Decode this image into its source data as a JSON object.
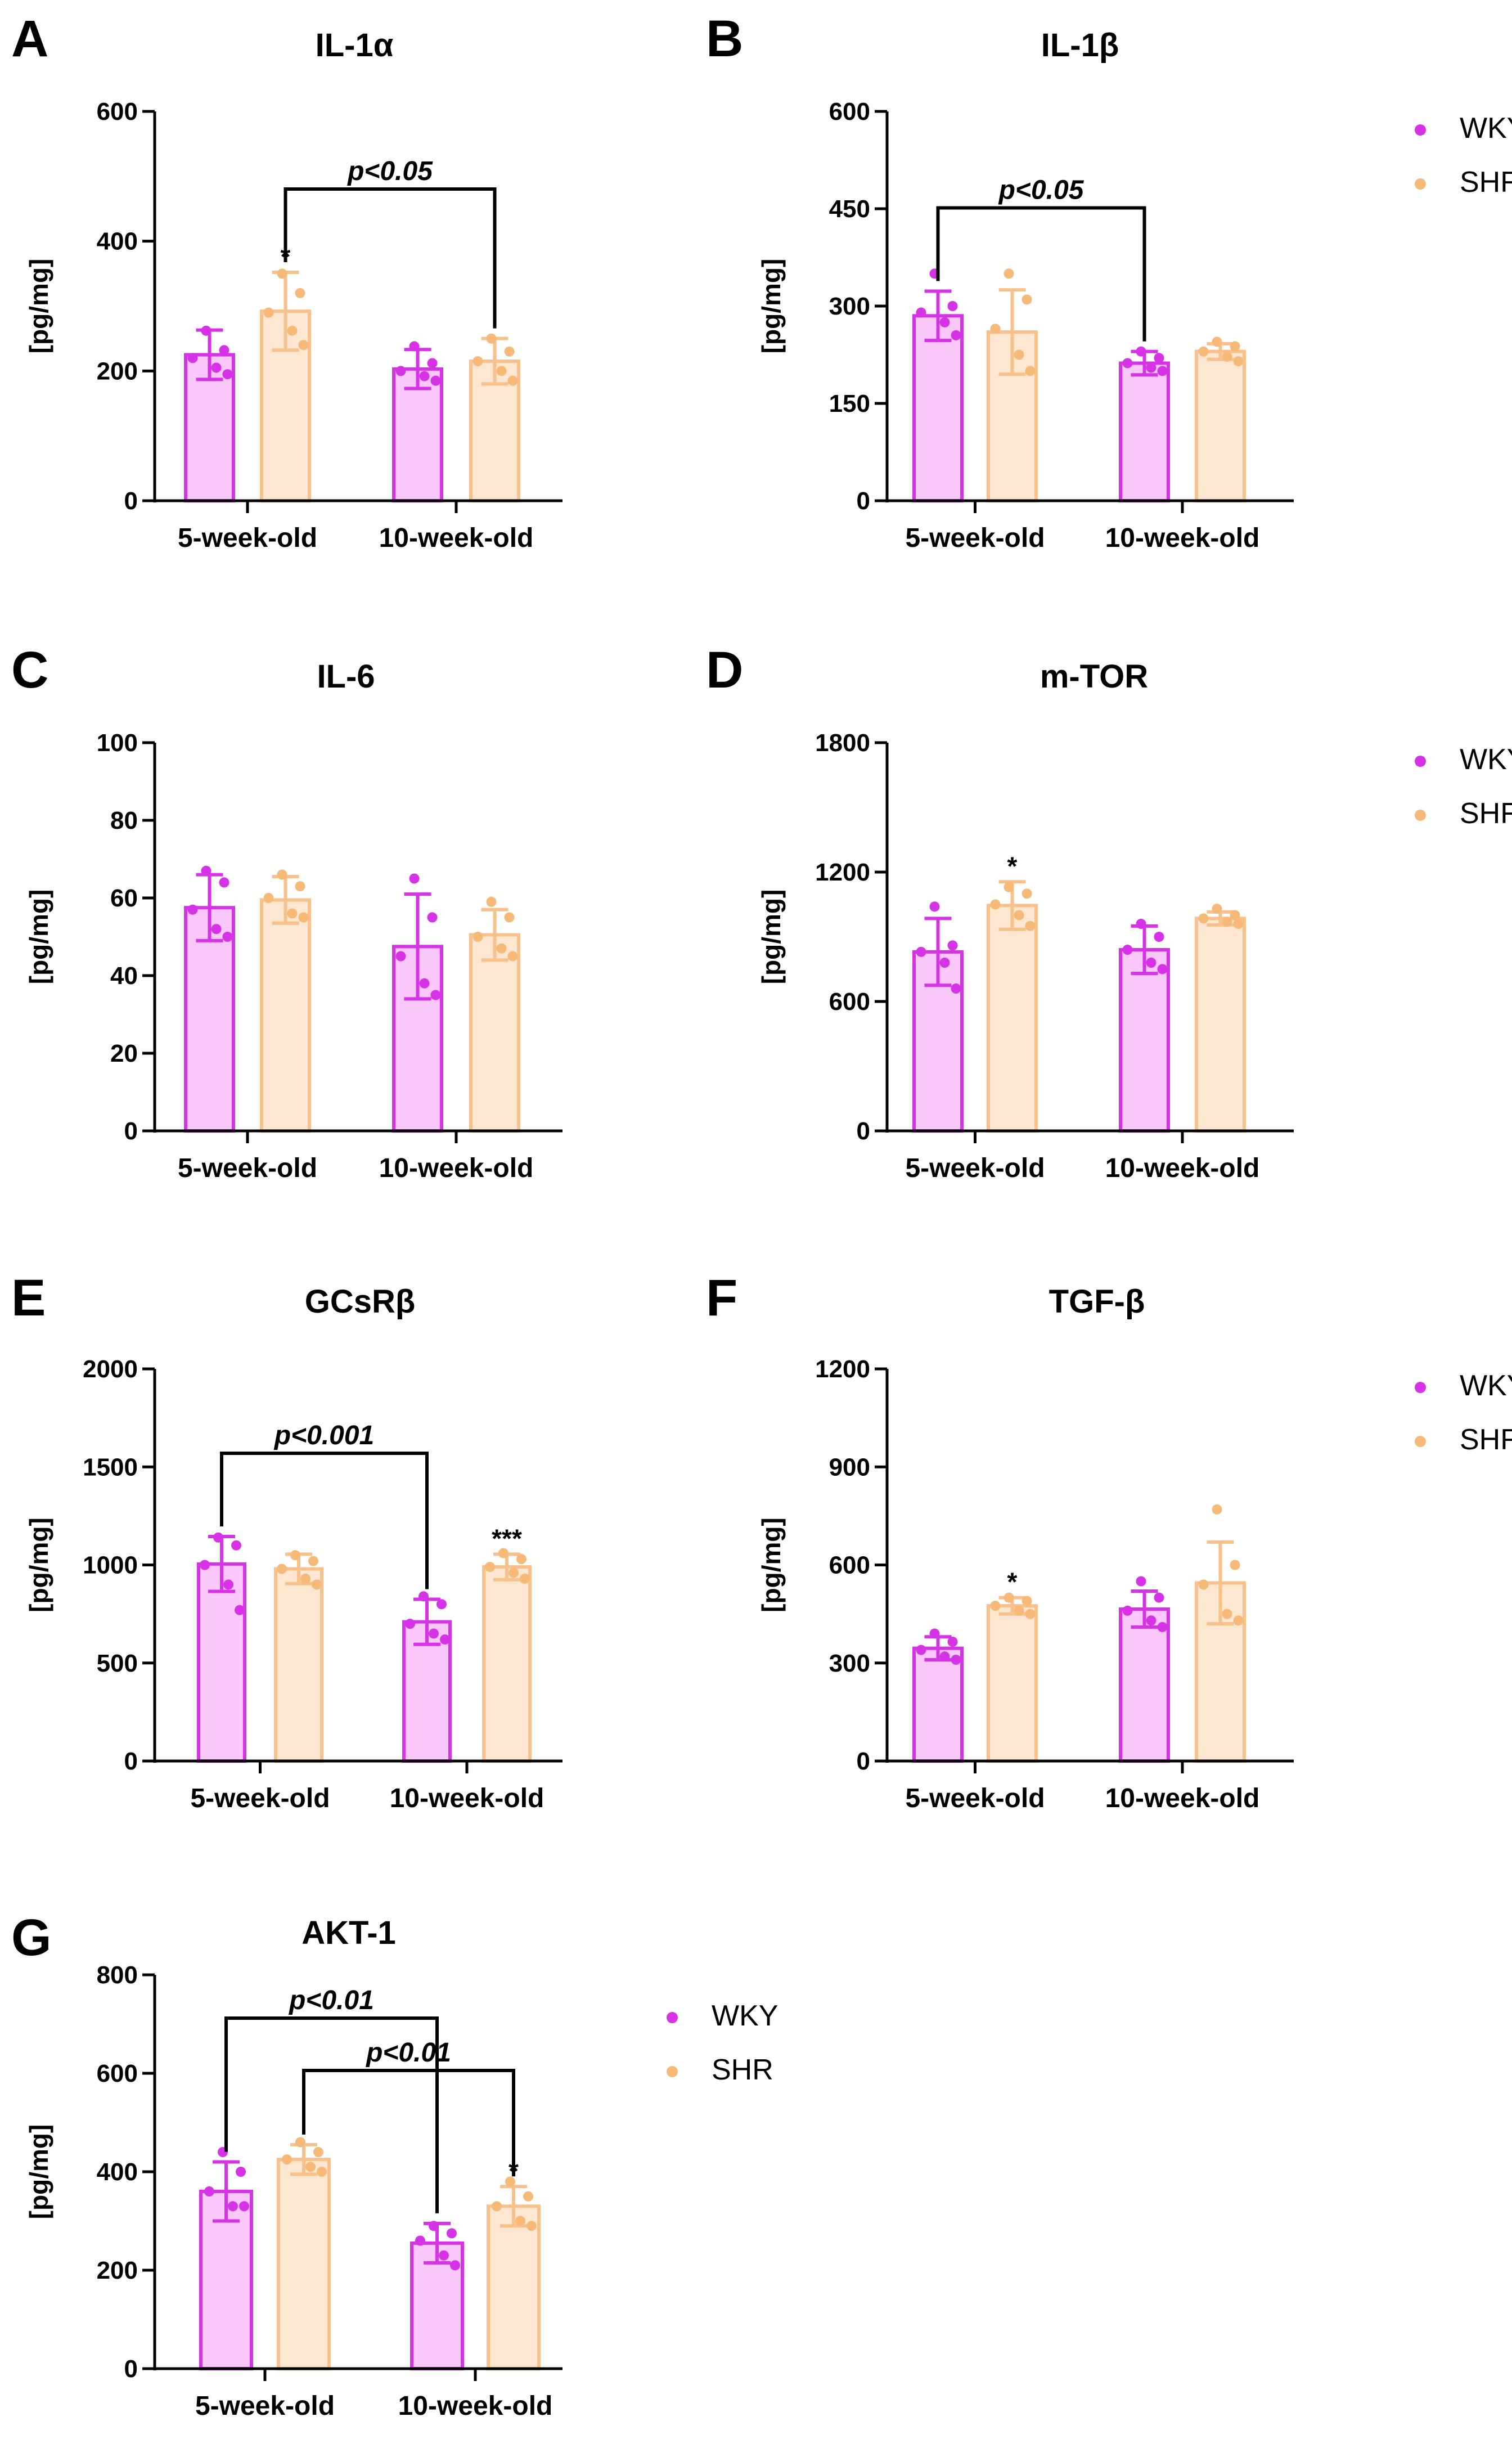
{
  "colors": {
    "wky_fill": "#f9c7f9",
    "wky_stroke": "#d633e6",
    "wky_dot": "#d633e6",
    "shr_fill": "#fde7d0",
    "shr_stroke": "#f8c08a",
    "shr_dot": "#f7b978",
    "axis": "#000000"
  },
  "legend": {
    "labels": [
      "WKY",
      "SHR"
    ]
  },
  "chart_data": [
    {
      "panel": "A",
      "type": "bar",
      "title": "IL-1α",
      "ylabel": "[pg/mg]",
      "categories": [
        "5-week-old",
        "10-week-old"
      ],
      "ylim": [
        0,
        600
      ],
      "yticks": [
        "0",
        "200",
        "400",
        "600"
      ],
      "series": [
        {
          "name": "WKY",
          "values": [
            225,
            203
          ],
          "sd": [
            38,
            30
          ],
          "points": [
            [
              262,
              232,
              220,
              205,
              195
            ],
            [
              238,
              212,
              200,
              192,
              185
            ]
          ]
        },
        {
          "name": "SHR",
          "values": [
            292,
            215
          ],
          "sd": [
            60,
            35
          ],
          "points": [
            [
              350,
              320,
              290,
              262,
              240
            ],
            [
              250,
              230,
              215,
              200,
              185
            ]
          ]
        }
      ],
      "stars": [
        {
          "series": 1,
          "cat": 0,
          "text": "*"
        }
      ],
      "brackets": [
        {
          "from": [
            1,
            0
          ],
          "to": [
            1,
            1
          ],
          "text": "p<0.05"
        }
      ]
    },
    {
      "panel": "B",
      "type": "bar",
      "title": "IL-1β",
      "ylabel": "[pg/mg]",
      "categories": [
        "5-week-old",
        "10-week-old"
      ],
      "ylim": [
        0,
        600
      ],
      "yticks": [
        "0",
        "150",
        "300",
        "450",
        "600"
      ],
      "series": [
        {
          "name": "WKY",
          "values": [
            285,
            212
          ],
          "sd": [
            38,
            18
          ],
          "points": [
            [
              350,
              300,
              290,
              275,
              255
            ],
            [
              230,
              220,
              212,
              205,
              200
            ]
          ]
        },
        {
          "name": "SHR",
          "values": [
            260,
            230
          ],
          "sd": [
            65,
            12
          ],
          "points": [
            [
              350,
              310,
              265,
              225,
              200
            ],
            [
              245,
              238,
              230,
              222,
              215
            ]
          ]
        }
      ],
      "stars": [],
      "brackets": [
        {
          "from": [
            0,
            0
          ],
          "to": [
            0,
            1
          ],
          "text": "p<0.05"
        }
      ]
    },
    {
      "panel": "C",
      "type": "bar",
      "title": "IL-6",
      "ylabel": "[pg/mg]",
      "categories": [
        "5-week-old",
        "10-week-old"
      ],
      "ylim": [
        0,
        100
      ],
      "yticks": [
        "0",
        "20",
        "40",
        "60",
        "80",
        "100"
      ],
      "series": [
        {
          "name": "WKY",
          "values": [
            57.5,
            47.5
          ],
          "sd": [
            8.5,
            13.5
          ],
          "points": [
            [
              67,
              64,
              57,
              52,
              50
            ],
            [
              65,
              55,
              45,
              38,
              35
            ]
          ]
        },
        {
          "name": "SHR",
          "values": [
            59.5,
            50.5
          ],
          "sd": [
            6,
            6.5
          ],
          "points": [
            [
              66,
              63,
              60,
              56,
              55
            ],
            [
              59,
              55,
              50,
              47,
              45
            ]
          ]
        }
      ],
      "stars": [],
      "brackets": []
    },
    {
      "panel": "D",
      "type": "bar",
      "title": "m-TOR",
      "ylabel": "[pg/mg]",
      "categories": [
        "5-week-old",
        "10-week-old"
      ],
      "ylim": [
        0,
        1800
      ],
      "yticks": [
        "0",
        "600",
        "1200",
        "1800"
      ],
      "series": [
        {
          "name": "WKY",
          "values": [
            830,
            840
          ],
          "sd": [
            155,
            110
          ],
          "points": [
            [
              1040,
              860,
              830,
              780,
              660
            ],
            [
              960,
              900,
              840,
              780,
              750
            ]
          ]
        },
        {
          "name": "SHR",
          "values": [
            1045,
            985
          ],
          "sd": [
            110,
            30
          ],
          "points": [
            [
              1130,
              1100,
              1050,
              1000,
              950
            ],
            [
              1030,
              1000,
              985,
              970,
              960
            ]
          ]
        }
      ],
      "stars": [
        {
          "series": 1,
          "cat": 0,
          "text": "*"
        }
      ],
      "brackets": []
    },
    {
      "panel": "E",
      "type": "bar",
      "title": "GCsRβ",
      "ylabel": "[pg/mg]",
      "categories": [
        "5-week-old",
        "10-week-old"
      ],
      "ylim": [
        0,
        2000
      ],
      "yticks": [
        "0",
        "500",
        "1000",
        "1500",
        "2000"
      ],
      "series": [
        {
          "name": "WKY",
          "values": [
            1005,
            710
          ],
          "sd": [
            140,
            115
          ],
          "points": [
            [
              1140,
              1100,
              1000,
              900,
              770
            ],
            [
              840,
              800,
              700,
              650,
              620
            ]
          ]
        },
        {
          "name": "SHR",
          "values": [
            980,
            990
          ],
          "sd": [
            75,
            65
          ],
          "points": [
            [
              1050,
              1020,
              980,
              930,
              900
            ],
            [
              1060,
              1030,
              990,
              960,
              930
            ]
          ]
        }
      ],
      "stars": [
        {
          "series": 1,
          "cat": 1,
          "text": "***"
        }
      ],
      "brackets": [
        {
          "from": [
            0,
            0
          ],
          "to": [
            0,
            1
          ],
          "text": "p<0.001"
        }
      ]
    },
    {
      "panel": "F",
      "type": "bar",
      "title": "TGF-β",
      "ylabel": "[pg/mg]",
      "categories": [
        "5-week-old",
        "10-week-old"
      ],
      "ylim": [
        0,
        1200
      ],
      "yticks": [
        "0",
        "300",
        "600",
        "900",
        "1200"
      ],
      "series": [
        {
          "name": "WKY",
          "values": [
            345,
            465
          ],
          "sd": [
            35,
            55
          ],
          "points": [
            [
              390,
              365,
              340,
              320,
              310
            ],
            [
              550,
              500,
              460,
              430,
              410
            ]
          ]
        },
        {
          "name": "SHR",
          "values": [
            475,
            545
          ],
          "sd": [
            25,
            125
          ],
          "points": [
            [
              500,
              490,
              475,
              460,
              450
            ],
            [
              770,
              600,
              540,
              450,
              430
            ]
          ]
        }
      ],
      "stars": [
        {
          "series": 1,
          "cat": 0,
          "text": "*"
        }
      ],
      "brackets": []
    },
    {
      "panel": "G",
      "type": "bar",
      "title": "AKT-1",
      "ylabel": "[pg/mg]",
      "categories": [
        "5-week-old",
        "10-week-old"
      ],
      "ylim": [
        0,
        800
      ],
      "yticks": [
        "0",
        "200",
        "400",
        "600",
        "800"
      ],
      "series": [
        {
          "name": "WKY",
          "values": [
            360,
            255
          ],
          "sd": [
            60,
            40
          ],
          "points": [
            [
              440,
              400,
              360,
              330,
              330
            ],
            [
              290,
              275,
              260,
              230,
              210
            ]
          ]
        },
        {
          "name": "SHR",
          "values": [
            425,
            330
          ],
          "sd": [
            30,
            40
          ],
          "points": [
            [
              460,
              440,
              425,
              410,
              400
            ],
            [
              380,
              350,
              330,
              300,
              290
            ]
          ]
        }
      ],
      "stars": [
        {
          "series": 1,
          "cat": 1,
          "text": "*"
        }
      ],
      "brackets": [
        {
          "from": [
            0,
            0
          ],
          "to": [
            0,
            1
          ],
          "text": "p<0.01",
          "level": 2
        },
        {
          "from": [
            1,
            0
          ],
          "to": [
            1,
            1
          ],
          "text": "p<0.01",
          "level": 1
        }
      ]
    }
  ]
}
